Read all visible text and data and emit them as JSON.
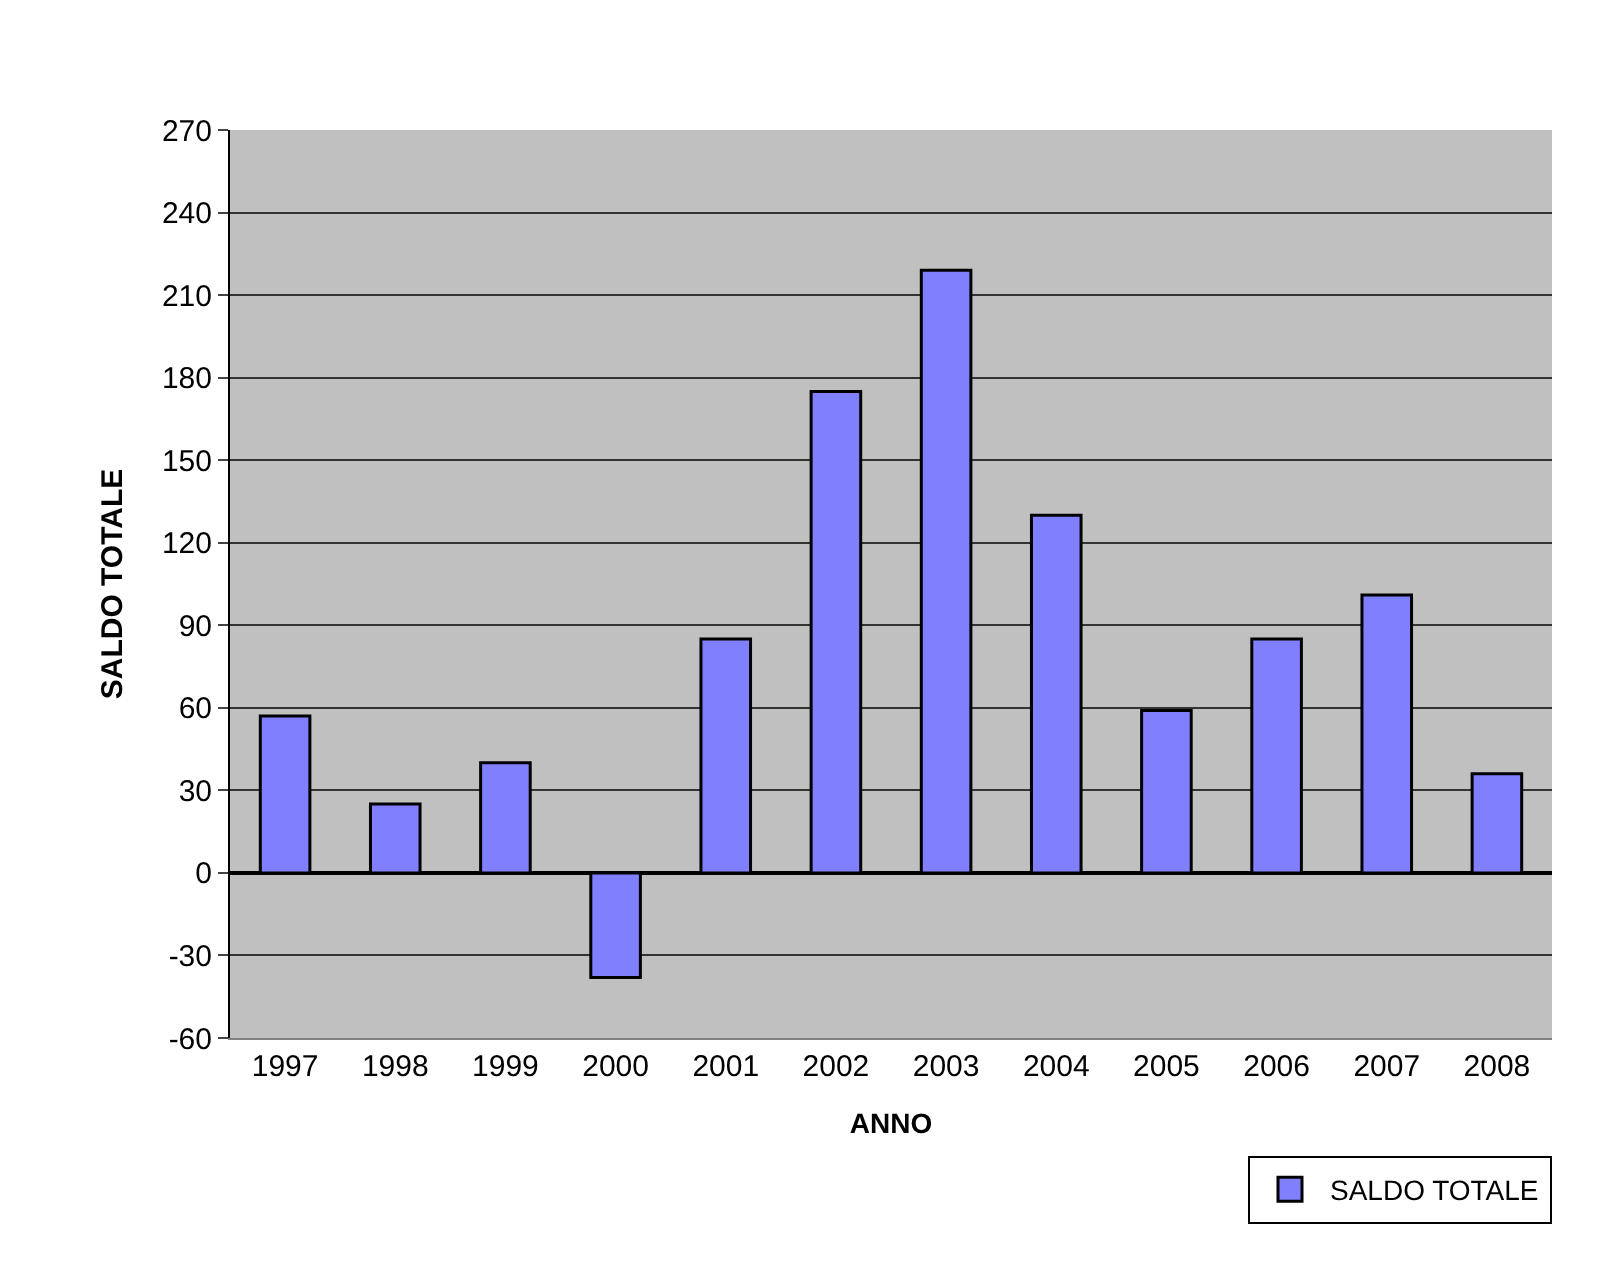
{
  "chart_data": {
    "type": "bar",
    "xlabel": "ANNO",
    "ylabel": "SALDO TOTALE",
    "categories": [
      "1997",
      "1998",
      "1999",
      "2000",
      "2001",
      "2002",
      "2003",
      "2004",
      "2005",
      "2006",
      "2007",
      "2008"
    ],
    "series": [
      {
        "name": "SALDO TOTALE",
        "color": "#8080ff",
        "values": [
          57,
          25,
          40,
          -38,
          85,
          175,
          219,
          130,
          59,
          85,
          101,
          36
        ]
      }
    ],
    "ylim": [
      -60,
      270
    ],
    "yticks": [
      -60,
      -30,
      0,
      30,
      60,
      90,
      120,
      150,
      180,
      210,
      240,
      270
    ],
    "grid": "y",
    "legend": "bottom right"
  }
}
